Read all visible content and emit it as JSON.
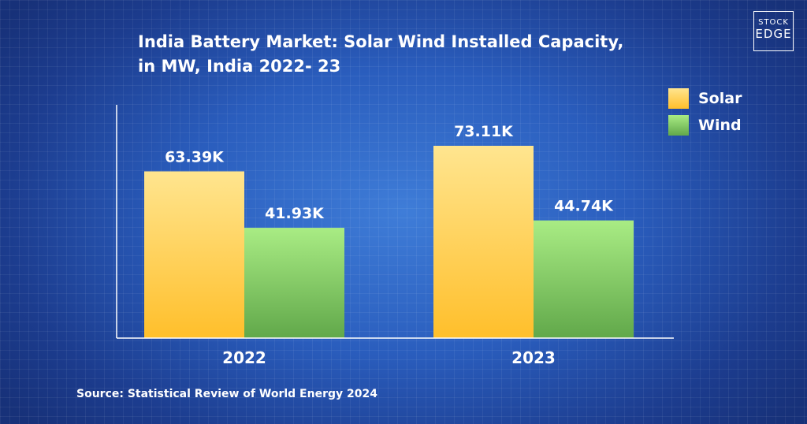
{
  "chart_data": {
    "type": "bar",
    "title": "India Battery Market: Solar Wind Installed Capacity, in MW, India 2022- 23",
    "title_lines": [
      "India Battery Market: Solar Wind Installed Capacity,",
      "in MW, India 2022- 23"
    ],
    "categories": [
      "2022",
      "2023"
    ],
    "series": [
      {
        "name": "Solar",
        "values": [
          63.39,
          73.11
        ],
        "labels": [
          "63.39K",
          "73.11K"
        ],
        "color_top": "#ffe58f",
        "color_bottom": "#ffbf2b"
      },
      {
        "name": "Wind",
        "values": [
          41.93,
          44.74
        ],
        "labels": [
          "41.93K",
          "44.74K"
        ],
        "color_top": "#a9ec84",
        "color_bottom": "#61a84a"
      }
    ],
    "units": "K",
    "xlabel": "",
    "ylabel": "",
    "ylim": [
      0,
      80
    ],
    "grid": false,
    "legend": "top-right"
  },
  "source": "Source: Statistical Review of World Energy 2024",
  "logo": {
    "line1": "STOCK",
    "line2": "EDGE"
  },
  "colors": {
    "background": "#2a5dbd",
    "text": "#ffffff",
    "axis": "#ffffff"
  }
}
